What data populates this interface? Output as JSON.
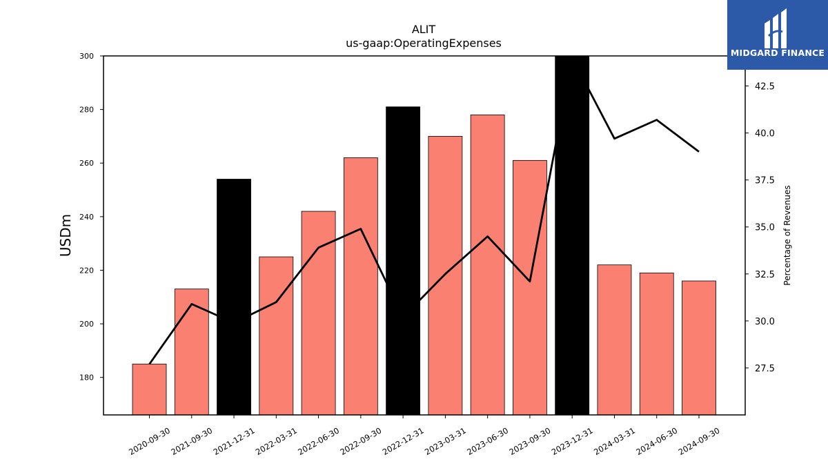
{
  "logo": {
    "text": "MIDGARD FINANCE",
    "background": "#2d5aa8"
  },
  "chart_data": {
    "type": "bar",
    "title": "ALIT",
    "subtitle": "us-gaap:OperatingExpenses",
    "categories": [
      "2020-09-30",
      "2021-09-30",
      "2021-12-31",
      "2022-03-31",
      "2022-06-30",
      "2022-09-30",
      "2022-12-31",
      "2023-03-31",
      "2023-06-30",
      "2023-09-30",
      "2023-12-31",
      "2024-03-31",
      "2024-06-30",
      "2024-09-30"
    ],
    "ylabel": "USDm",
    "y2label": "Percentage of Revenues",
    "ylim": [
      166,
      300
    ],
    "y2lim": [
      25.0,
      44.1
    ],
    "yticks": [
      180,
      200,
      220,
      240,
      260,
      280,
      300
    ],
    "y2ticks": [
      "27.5",
      "30.0",
      "32.5",
      "35.0",
      "37.5",
      "40.0",
      "42.5"
    ],
    "series": [
      {
        "kind": "bar",
        "values": [
          185,
          213,
          254,
          225,
          242,
          262,
          281,
          270,
          278,
          261,
          300,
          222,
          219,
          216
        ],
        "highlight": [
          false,
          false,
          true,
          false,
          false,
          false,
          true,
          false,
          false,
          false,
          true,
          false,
          false,
          false
        ],
        "color": "#fa8072",
        "highlight_color": "#000000"
      },
      {
        "kind": "line",
        "axis": "right",
        "values": [
          27.7,
          30.9,
          29.9,
          31.0,
          33.9,
          34.9,
          30.2,
          32.5,
          34.5,
          32.1,
          44.0,
          39.7,
          40.7,
          39.0
        ],
        "color": "#000000"
      }
    ],
    "grid": false,
    "legend": "none"
  }
}
